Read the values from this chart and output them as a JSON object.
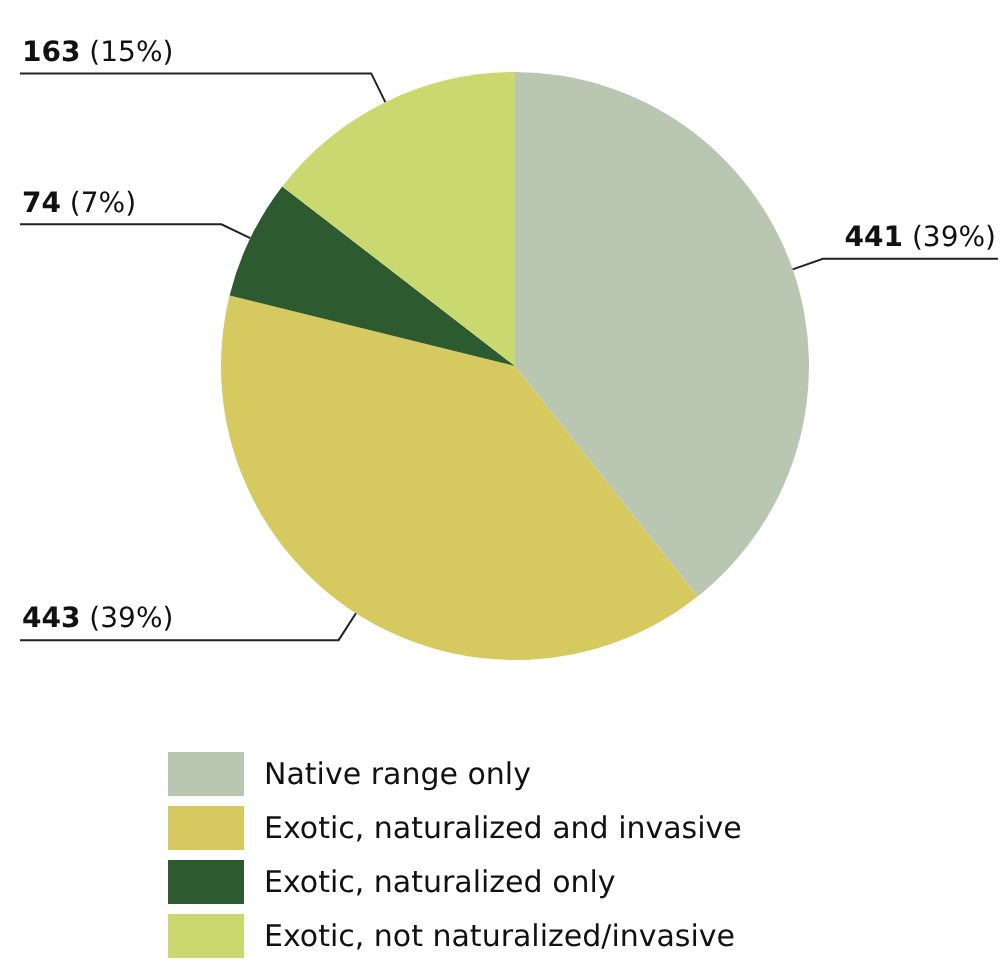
{
  "chart_data": {
    "type": "pie",
    "categories": [
      "Native range only",
      "Exotic, naturalized and invasive",
      "Exotic, naturalized only",
      "Exotic, not naturalized/invasive"
    ],
    "values": [
      441,
      443,
      74,
      163
    ],
    "colors": [
      "#b9c6b1",
      "#d5c95f",
      "#2d5a2f",
      "#c9d96f"
    ],
    "value_labels": [
      "441 (39%)",
      "443 (39%)",
      "74 (7%)",
      "163 (15%)"
    ],
    "legend": "bottom"
  }
}
